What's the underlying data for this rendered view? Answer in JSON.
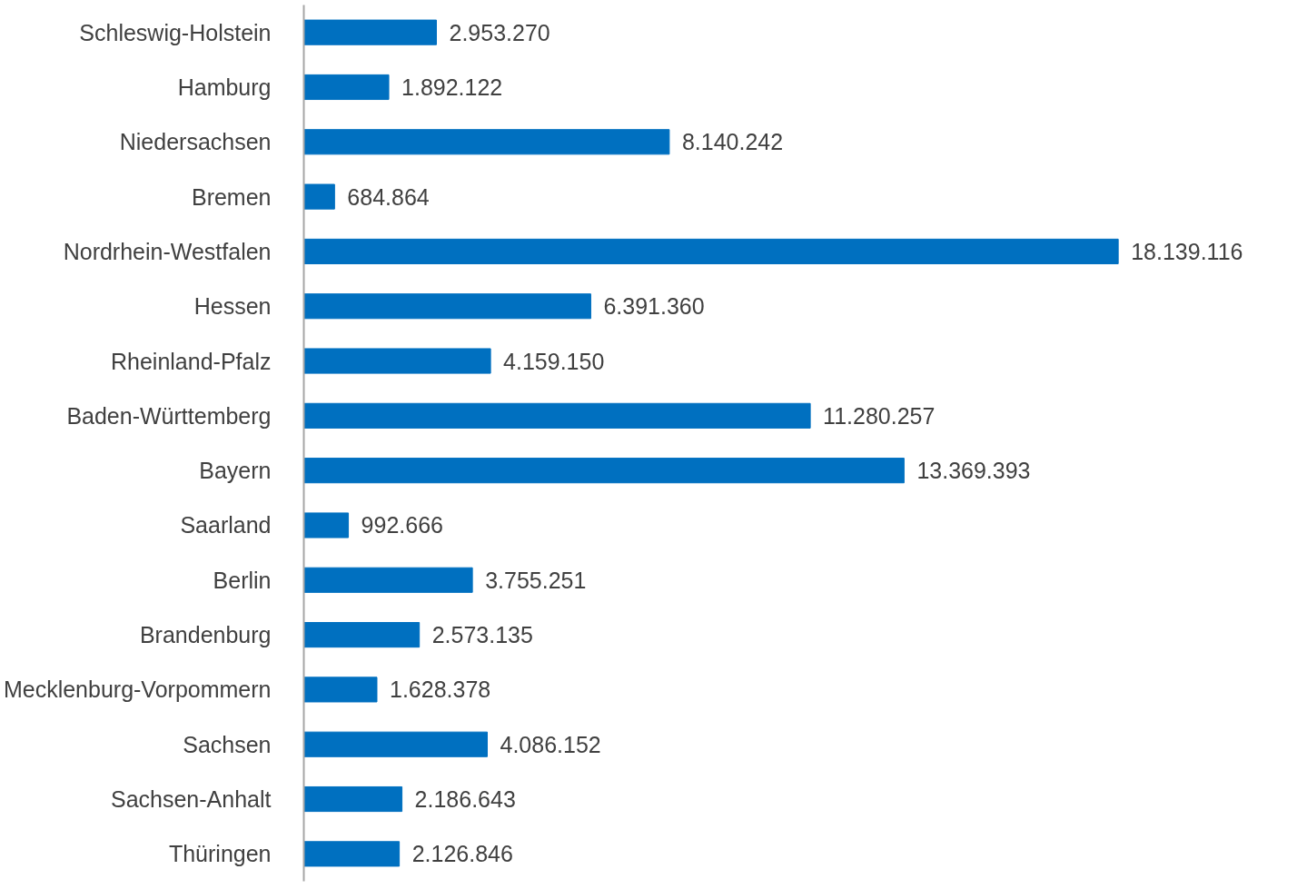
{
  "chart_data": {
    "type": "bar",
    "orientation": "horizontal",
    "categories": [
      "Schleswig-Holstein",
      "Hamburg",
      "Niedersachsen",
      "Bremen",
      "Nordrhein-Westfalen",
      "Hessen",
      "Rheinland-Pfalz",
      "Baden-Württemberg",
      "Bayern",
      "Saarland",
      "Berlin",
      "Brandenburg",
      "Mecklenburg-Vorpommern",
      "Sachsen",
      "Sachsen-Anhalt",
      "Thüringen"
    ],
    "values": [
      2953270,
      1892122,
      8140242,
      684864,
      18139116,
      6391360,
      4159150,
      11280257,
      13369393,
      992666,
      3755251,
      2573135,
      1628378,
      4086152,
      2186643,
      2126846
    ],
    "value_labels": [
      "2.953.270",
      "1.892.122",
      "8.140.242",
      "684.864",
      "18.139.116",
      "6.391.360",
      "4.159.150",
      "11.280.257",
      "13.369.393",
      "992.666",
      "3.755.251",
      "2.573.135",
      "1.628.378",
      "4.086.152",
      "2.186.643",
      "2.126.846"
    ],
    "color": "#0070c0",
    "grid": false,
    "tick_labels": "y"
  }
}
